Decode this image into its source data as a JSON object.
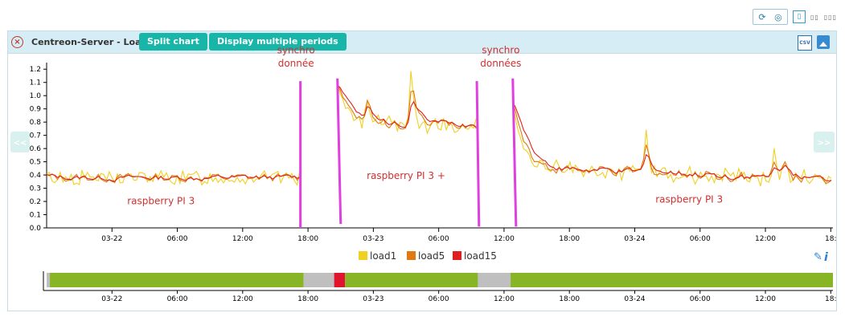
{
  "toolbar": {
    "refresh_icon": "refresh-icon",
    "timer_icon": "timer-icon",
    "layout_one": "1",
    "layout_two": "2",
    "layout_three": "3"
  },
  "panel": {
    "title": "Centreon-Server - Load",
    "split_chart": "Split chart",
    "display_multiple_periods": "Display multiple periods",
    "csv_label": "CSV",
    "prev": "<<",
    "next": ">>"
  },
  "chart_data": {
    "type": "line",
    "title": "Centreon-Server - Load",
    "ylim": [
      0,
      1.25
    ],
    "yticks": [
      "0.0",
      "0.1",
      "0.2",
      "0.3",
      "0.4",
      "0.5",
      "0.6",
      "0.7",
      "0.8",
      "0.9",
      "1.0",
      "1.1",
      "1.2"
    ],
    "xlim": [
      0,
      72.2
    ],
    "xticks": [
      {
        "t": 6,
        "label": "03-22"
      },
      {
        "t": 12,
        "label": "06:00"
      },
      {
        "t": 18,
        "label": "12:00"
      },
      {
        "t": 24,
        "label": "18:00"
      },
      {
        "t": 30,
        "label": "03-23"
      },
      {
        "t": 36,
        "label": "06:00"
      },
      {
        "t": 42,
        "label": "12:00"
      },
      {
        "t": 48,
        "label": "18:00"
      },
      {
        "t": 54,
        "label": "03-24"
      },
      {
        "t": 60,
        "label": "06:00"
      },
      {
        "t": 66,
        "label": "12:00"
      },
      {
        "t": 72,
        "label": "18:"
      }
    ],
    "series": [
      {
        "name": "load1",
        "color": "#f0d020"
      },
      {
        "name": "load5",
        "color": "#e07a10"
      },
      {
        "name": "load15",
        "color": "#e02020"
      }
    ],
    "segments": [
      {
        "t0": 0,
        "t1": 23.3,
        "base": 0.38,
        "noise": 0.05,
        "drift": 0,
        "peaks": []
      },
      {
        "t0": 26.7,
        "t1": 39.5,
        "base": 0.78,
        "noise": 0.06,
        "drift": 0,
        "start": 1.08,
        "peaks": [
          {
            "t": 33.5,
            "v": 1.22
          },
          {
            "t": 29.5,
            "v": 1.0
          }
        ]
      },
      {
        "t0": 42.8,
        "t1": 72.2,
        "base": 0.46,
        "noise": 0.06,
        "drift": -0.0035,
        "start": 0.95,
        "peaks": [
          {
            "t": 55,
            "v": 0.75
          },
          {
            "t": 66.8,
            "v": 0.68
          },
          {
            "t": 67.8,
            "v": 0.58
          }
        ]
      }
    ],
    "annotations": [
      {
        "text": "raspberry PI 3",
        "t": 10.5,
        "v": 0.18
      },
      {
        "text": "raspberry PI 3 +",
        "t": 33,
        "v": 0.37
      },
      {
        "text": "raspberry PI 3",
        "t": 59,
        "v": 0.19
      },
      {
        "text": "synchro",
        "t": 22.9,
        "v": 1.32
      },
      {
        "text": "donnée",
        "t": 22.9,
        "v": 1.22
      },
      {
        "text": "synchro",
        "t": 41.7,
        "v": 1.32
      },
      {
        "text": "données",
        "t": 41.7,
        "v": 1.22
      }
    ],
    "markers": [
      {
        "t0": 23.3,
        "t1": 23.3,
        "v0": 0.0,
        "v1": 1.11
      },
      {
        "t0": 26.7,
        "t1": 27.0,
        "v0": 1.13,
        "v1": 0.03
      },
      {
        "t0": 39.5,
        "t1": 39.7,
        "v0": 1.11,
        "v1": 0.01
      },
      {
        "t0": 42.8,
        "t1": 43.1,
        "v0": 1.13,
        "v1": 0.01
      }
    ],
    "status_bar": [
      {
        "t0": 0,
        "t1": 0.3,
        "color": "#bfbfbf"
      },
      {
        "t0": 0.3,
        "t1": 23.6,
        "color": "#88b526"
      },
      {
        "t0": 23.6,
        "t1": 26.4,
        "color": "#bfbfbf"
      },
      {
        "t0": 26.4,
        "t1": 27.4,
        "color": "#e0142c"
      },
      {
        "t0": 27.4,
        "t1": 39.6,
        "color": "#88b526"
      },
      {
        "t0": 39.6,
        "t1": 42.6,
        "color": "#bfbfbf"
      },
      {
        "t0": 42.6,
        "t1": 72.2,
        "color": "#88b526"
      }
    ],
    "legend_position": "bottom-center"
  }
}
